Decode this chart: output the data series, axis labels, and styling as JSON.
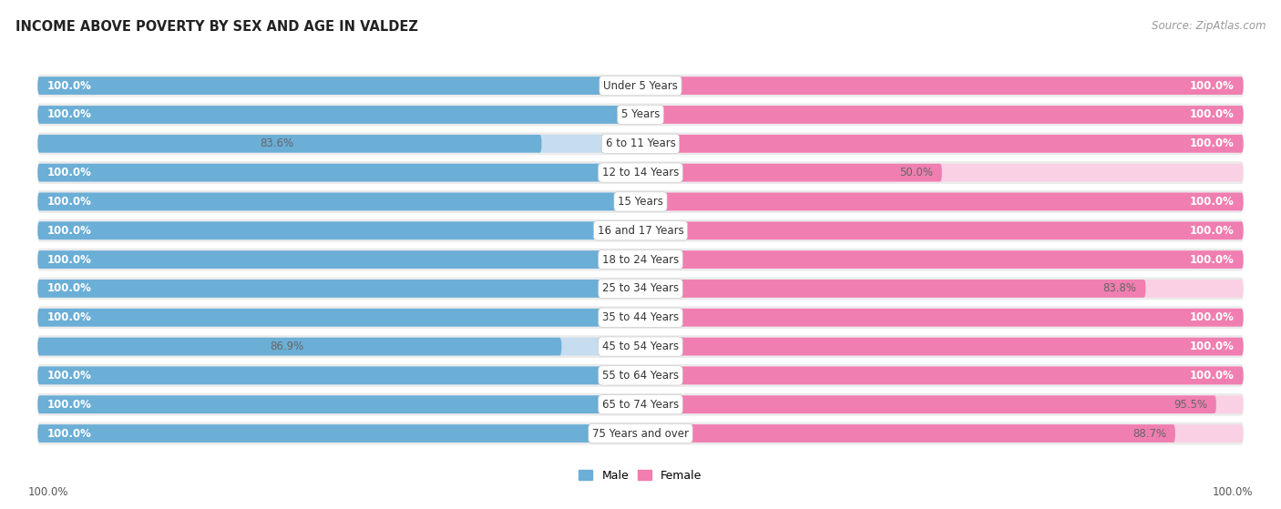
{
  "title": "INCOME ABOVE POVERTY BY SEX AND AGE IN VALDEZ",
  "source": "Source: ZipAtlas.com",
  "categories": [
    "Under 5 Years",
    "5 Years",
    "6 to 11 Years",
    "12 to 14 Years",
    "15 Years",
    "16 and 17 Years",
    "18 to 24 Years",
    "25 to 34 Years",
    "35 to 44 Years",
    "45 to 54 Years",
    "55 to 64 Years",
    "65 to 74 Years",
    "75 Years and over"
  ],
  "male_values": [
    100.0,
    100.0,
    83.6,
    100.0,
    100.0,
    100.0,
    100.0,
    100.0,
    100.0,
    86.9,
    100.0,
    100.0,
    100.0
  ],
  "female_values": [
    100.0,
    100.0,
    100.0,
    50.0,
    100.0,
    100.0,
    100.0,
    83.8,
    100.0,
    100.0,
    100.0,
    95.5,
    88.7
  ],
  "male_color": "#6BAED6",
  "male_color_light": "#C6DCEF",
  "female_color": "#F07EB0",
  "female_color_light": "#FAD0E4",
  "row_bg_color": "#EBEBEB",
  "bar_height": 0.62,
  "background_color": "#ffffff",
  "x_axis_label_left": "100.0%",
  "x_axis_label_right": "100.0%",
  "legend_male": "Male",
  "legend_female": "Female",
  "label_fontsize": 8.5,
  "cat_fontsize": 8.5
}
